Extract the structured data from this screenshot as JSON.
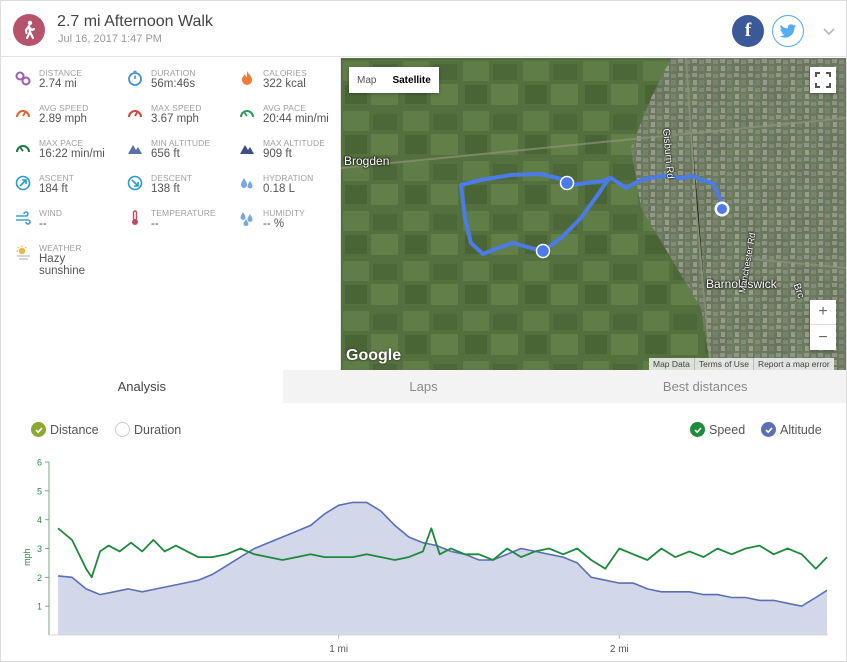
{
  "header": {
    "title": "2.7 mi Afternoon Walk",
    "subtitle": "Jul 16, 2017 1:47 PM",
    "activity_icon": "walking-person-icon",
    "share_facebook_icon": "facebook-icon",
    "share_twitter_icon": "twitter-icon",
    "expand_icon": "chevron-down-icon",
    "accent_color": "#b5526c"
  },
  "stats": [
    {
      "key": "distance",
      "label": "DISTANCE",
      "value": "2.74 mi",
      "icon": "distance-pin-icon",
      "color": "#9b5fb0"
    },
    {
      "key": "duration",
      "label": "DURATION",
      "value": "56m:46s",
      "icon": "stopwatch-icon",
      "color": "#4a90d9"
    },
    {
      "key": "calories",
      "label": "CALORIES",
      "value": "322 kcal",
      "icon": "flame-icon",
      "color": "#f07a3a"
    },
    {
      "key": "avg_speed",
      "label": "AVG SPEED",
      "value": "2.89 mph",
      "icon": "speedometer-icon",
      "color": "#e0662f"
    },
    {
      "key": "max_speed",
      "label": "MAX SPEED",
      "value": "3.67 mph",
      "icon": "speedometer-icon",
      "color": "#d9453a"
    },
    {
      "key": "avg_pace",
      "label": "AVG PACE",
      "value": "20:44 min/mi",
      "icon": "pace-gauge-icon",
      "color": "#2e9b5e"
    },
    {
      "key": "max_pace",
      "label": "MAX PACE",
      "value": "16:22 min/mi",
      "icon": "pace-gauge-icon",
      "color": "#1f7a4a"
    },
    {
      "key": "min_altitude",
      "label": "MIN ALTITUDE",
      "value": "656 ft",
      "icon": "mountain-icon",
      "color": "#5b6fa8"
    },
    {
      "key": "max_altitude",
      "label": "MAX ALTITUDE",
      "value": "909 ft",
      "icon": "mountain-icon",
      "color": "#3e4f86"
    },
    {
      "key": "ascent",
      "label": "ASCENT",
      "value": "184 ft",
      "icon": "ascent-arrow-icon",
      "color": "#2b9ad1"
    },
    {
      "key": "descent",
      "label": "DESCENT",
      "value": "138 ft",
      "icon": "descent-arrow-icon",
      "color": "#2b9ad1"
    },
    {
      "key": "hydration",
      "label": "HYDRATION",
      "value": "0.18 L",
      "icon": "water-drops-icon",
      "color": "#7aa7e0"
    },
    {
      "key": "wind",
      "label": "WIND",
      "value": "--",
      "icon": "wind-icon",
      "color": "#3aa0d8"
    },
    {
      "key": "temperature",
      "label": "TEMPERATURE",
      "value": "--",
      "icon": "thermometer-icon",
      "color": "#c04a6a"
    },
    {
      "key": "humidity",
      "label": "HUMIDITY",
      "value": "-- %",
      "icon": "humidity-drops-icon",
      "color": "#7aa7e0"
    },
    {
      "key": "weather",
      "label": "WEATHER",
      "value": "Hazy sunshine",
      "icon": "sun-haze-icon",
      "color": "#f2b63a"
    }
  ],
  "map": {
    "toggle_map": "Map",
    "toggle_satellite": "Satellite",
    "labels": {
      "brogden": "Brogden",
      "gisburn": "Gisburn Rd",
      "barnoldswick": "Barnoldswick",
      "manchester": "Manchester Rd",
      "brc": "Brc"
    },
    "google": "Google",
    "footer": [
      "Map Data",
      "Terms of Use",
      "Report a map error"
    ],
    "zoom_in": "+",
    "zoom_out": "−",
    "fullscreen_icon": "fullscreen-icon",
    "route_color": "#4a7be8"
  },
  "tabs": [
    {
      "label": "Analysis",
      "active": true
    },
    {
      "label": "Laps",
      "active": false
    },
    {
      "label": "Best distances",
      "active": false
    }
  ],
  "legend": {
    "distance": "Distance",
    "duration": "Duration",
    "speed": "Speed",
    "altitude": "Altitude",
    "x_mode": "Distance",
    "speed_color": "#1e8a3c",
    "altitude_color": "#5b6fb5",
    "distance_color": "#8aa832"
  },
  "chart_data": {
    "type": "line",
    "ylabel": "mph",
    "ylim": [
      0,
      6
    ],
    "yticks": [
      "1",
      "2",
      "3",
      "4",
      "5",
      "6"
    ],
    "xticks": [
      {
        "label": "1 mi",
        "value": 1
      },
      {
        "label": "2 mi",
        "value": 2
      }
    ],
    "xlim": [
      0,
      2.74
    ],
    "series": [
      {
        "name": "Speed",
        "unit": "mph",
        "color": "#1e8a3c",
        "x": [
          0.0,
          0.05,
          0.1,
          0.12,
          0.15,
          0.18,
          0.22,
          0.26,
          0.3,
          0.34,
          0.38,
          0.42,
          0.46,
          0.5,
          0.55,
          0.6,
          0.65,
          0.7,
          0.75,
          0.8,
          0.85,
          0.9,
          0.95,
          1.0,
          1.05,
          1.1,
          1.15,
          1.2,
          1.25,
          1.3,
          1.33,
          1.36,
          1.4,
          1.45,
          1.5,
          1.55,
          1.6,
          1.65,
          1.7,
          1.75,
          1.8,
          1.85,
          1.9,
          1.95,
          2.0,
          2.05,
          2.1,
          2.15,
          2.2,
          2.25,
          2.3,
          2.35,
          2.4,
          2.45,
          2.5,
          2.55,
          2.6,
          2.65,
          2.7,
          2.74
        ],
        "values": [
          3.7,
          3.3,
          2.3,
          2.0,
          2.9,
          3.1,
          2.9,
          3.2,
          2.9,
          3.3,
          2.9,
          3.1,
          2.9,
          2.7,
          2.7,
          2.8,
          3.0,
          2.8,
          2.7,
          2.6,
          2.7,
          2.8,
          2.7,
          2.7,
          2.7,
          2.8,
          2.7,
          2.6,
          2.7,
          2.9,
          3.7,
          2.8,
          3.0,
          2.8,
          2.8,
          2.6,
          3.0,
          2.7,
          2.9,
          3.0,
          2.8,
          3.0,
          2.6,
          2.3,
          3.0,
          2.8,
          2.6,
          3.0,
          2.7,
          2.9,
          2.7,
          3.0,
          2.8,
          3.0,
          3.1,
          2.8,
          3.0,
          2.8,
          2.3,
          2.7
        ]
      },
      {
        "name": "Altitude",
        "unit": "ft",
        "color": "#5b6fb5",
        "x": [
          0.0,
          0.05,
          0.1,
          0.15,
          0.2,
          0.25,
          0.3,
          0.35,
          0.4,
          0.45,
          0.5,
          0.55,
          0.6,
          0.65,
          0.7,
          0.75,
          0.8,
          0.85,
          0.9,
          0.95,
          1.0,
          1.05,
          1.1,
          1.15,
          1.2,
          1.25,
          1.3,
          1.35,
          1.4,
          1.45,
          1.5,
          1.55,
          1.6,
          1.65,
          1.7,
          1.75,
          1.8,
          1.85,
          1.9,
          1.95,
          2.0,
          2.05,
          2.1,
          2.15,
          2.2,
          2.25,
          2.3,
          2.35,
          2.4,
          2.45,
          2.5,
          2.55,
          2.6,
          2.65,
          2.7,
          2.74
        ],
        "values": [
          2.05,
          2.0,
          1.6,
          1.4,
          1.5,
          1.6,
          1.5,
          1.6,
          1.7,
          1.8,
          1.9,
          2.1,
          2.4,
          2.7,
          3.0,
          3.2,
          3.4,
          3.6,
          3.8,
          4.2,
          4.5,
          4.6,
          4.6,
          4.3,
          3.8,
          3.4,
          3.2,
          3.1,
          2.9,
          2.8,
          2.6,
          2.6,
          2.8,
          3.0,
          2.9,
          2.8,
          2.7,
          2.5,
          2.0,
          1.9,
          1.8,
          1.8,
          1.6,
          1.5,
          1.5,
          1.5,
          1.4,
          1.4,
          1.3,
          1.3,
          1.2,
          1.2,
          1.1,
          1.0,
          1.3,
          1.55
        ]
      }
    ]
  }
}
